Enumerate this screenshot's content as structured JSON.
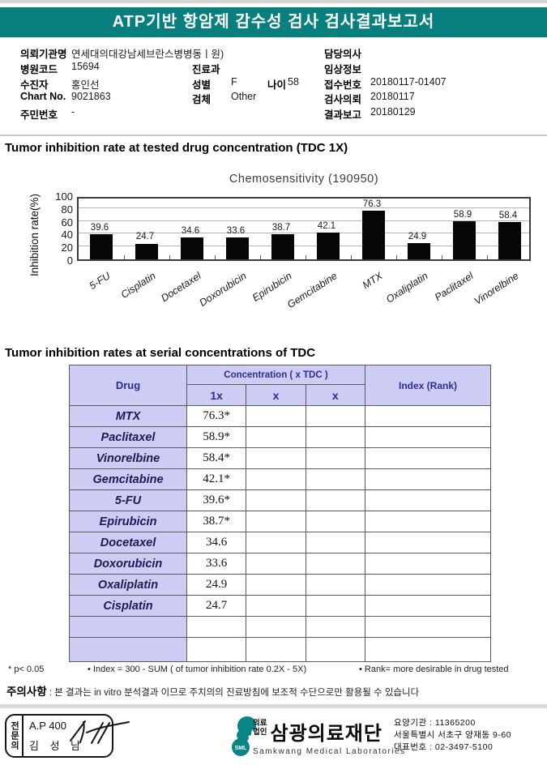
{
  "banner": {
    "title": "ATP기반 항암제 감수성 검사 검사결과보고서"
  },
  "info": {
    "rows": [
      {
        "l": "의뢰기관명",
        "lv": "연세대의대강남세브란스병병동ㅣ원)",
        "r": "담당의사",
        "rv": ""
      },
      {
        "l": "병원코드",
        "lv": "15694",
        "m": "진료과",
        "mv": "",
        "r": "임상정보",
        "rv": ""
      },
      {
        "l": "수진자",
        "lv": "홍인선",
        "m": "성별",
        "mv": "F",
        "m2": "나이",
        "m2v": "58",
        "r": "접수번호",
        "rv": "20180117-01407"
      },
      {
        "l": "Chart No.",
        "lv": "9021863",
        "m": "검체",
        "mv": "Other",
        "r": "검사의뢰",
        "rv": "20180117"
      },
      {
        "l": "주민번호",
        "lv": "-",
        "r": "결과보고",
        "rv": "20180129"
      }
    ]
  },
  "sections": {
    "chart_section_title": "Tumor inhibition rate at tested drug concentration (TDC 1X)",
    "table_section_title": "Tumor inhibition rates at serial concentrations of TDC"
  },
  "chart_data": {
    "type": "bar",
    "title": "Chemosensitivity (190950)",
    "ylabel": "Inhibition rate(%)",
    "ylim": [
      0,
      100
    ],
    "yticks": [
      0,
      20,
      40,
      60,
      80,
      100
    ],
    "grid": "horizontal",
    "bar_color": "#060606",
    "categories": [
      "5-FU",
      "Cisplatin",
      "Docetaxel",
      "Doxorubicin",
      "Epirubicin",
      "Gemcitabine",
      "MTX",
      "Oxaliplatin",
      "Paclitaxel",
      "Vinorelbine"
    ],
    "values": [
      39.6,
      24.7,
      34.6,
      33.6,
      38.7,
      42.1,
      76.3,
      24.9,
      58.9,
      58.4
    ]
  },
  "table": {
    "col_drug": "Drug",
    "col_conc": "Concentration ( x TDC )",
    "col_index": "Index (Rank)",
    "sub_cols": [
      "1x",
      "x",
      "x"
    ],
    "rows": [
      {
        "drug": "MTX",
        "c1": "76.3*",
        "c2": "",
        "c3": "",
        "index": ""
      },
      {
        "drug": "Paclitaxel",
        "c1": "58.9*",
        "c2": "",
        "c3": "",
        "index": ""
      },
      {
        "drug": "Vinorelbine",
        "c1": "58.4*",
        "c2": "",
        "c3": "",
        "index": ""
      },
      {
        "drug": "Gemcitabine",
        "c1": "42.1*",
        "c2": "",
        "c3": "",
        "index": ""
      },
      {
        "drug": "5-FU",
        "c1": "39.6*",
        "c2": "",
        "c3": "",
        "index": ""
      },
      {
        "drug": "Epirubicin",
        "c1": "38.7*",
        "c2": "",
        "c3": "",
        "index": ""
      },
      {
        "drug": "Docetaxel",
        "c1": "34.6",
        "c2": "",
        "c3": "",
        "index": ""
      },
      {
        "drug": "Doxorubicin",
        "c1": "33.6",
        "c2": "",
        "c3": "",
        "index": ""
      },
      {
        "drug": "Oxaliplatin",
        "c1": "24.9",
        "c2": "",
        "c3": "",
        "index": ""
      },
      {
        "drug": "Cisplatin",
        "c1": "24.7",
        "c2": "",
        "c3": "",
        "index": ""
      },
      {
        "drug": "",
        "c1": "",
        "c2": "",
        "c3": "",
        "index": ""
      },
      {
        "drug": "",
        "c1": "",
        "c2": "",
        "c3": "",
        "index": ""
      }
    ]
  },
  "footnotes": {
    "p_value": "* p< 0.05",
    "index_def": "• Index = 300 - SUM ( of tumor inhibition rate 0.2X  -  5X)",
    "rank_def": "• Rank= more desirable in drug tested"
  },
  "caution": {
    "label": "주의사항",
    "text": " : 본 결과는 in vitro 분석결과 이므로 주치의의 진료방침에 보조적 수단으로만 활용될 수 있습니다"
  },
  "footer": {
    "stamp": {
      "title": "전문의",
      "line1": "A.P 400",
      "line2": "김 성 남"
    },
    "logo": {
      "sml": "SML",
      "org_prefix": "의료\n법인",
      "org_name": "삼광의료재단",
      "org_en": "Samkwang Medical Laboratories"
    },
    "contact": [
      "요양기관 : 11365200",
      "서울특별시 서초구 양재동 9-60",
      "대표번호 : 02-3497-5100"
    ]
  },
  "colors": {
    "teal": "#087f7f",
    "table_header_bg": "#ccccf5",
    "table_header_text": "#2d2d94",
    "bar": "#060606"
  }
}
